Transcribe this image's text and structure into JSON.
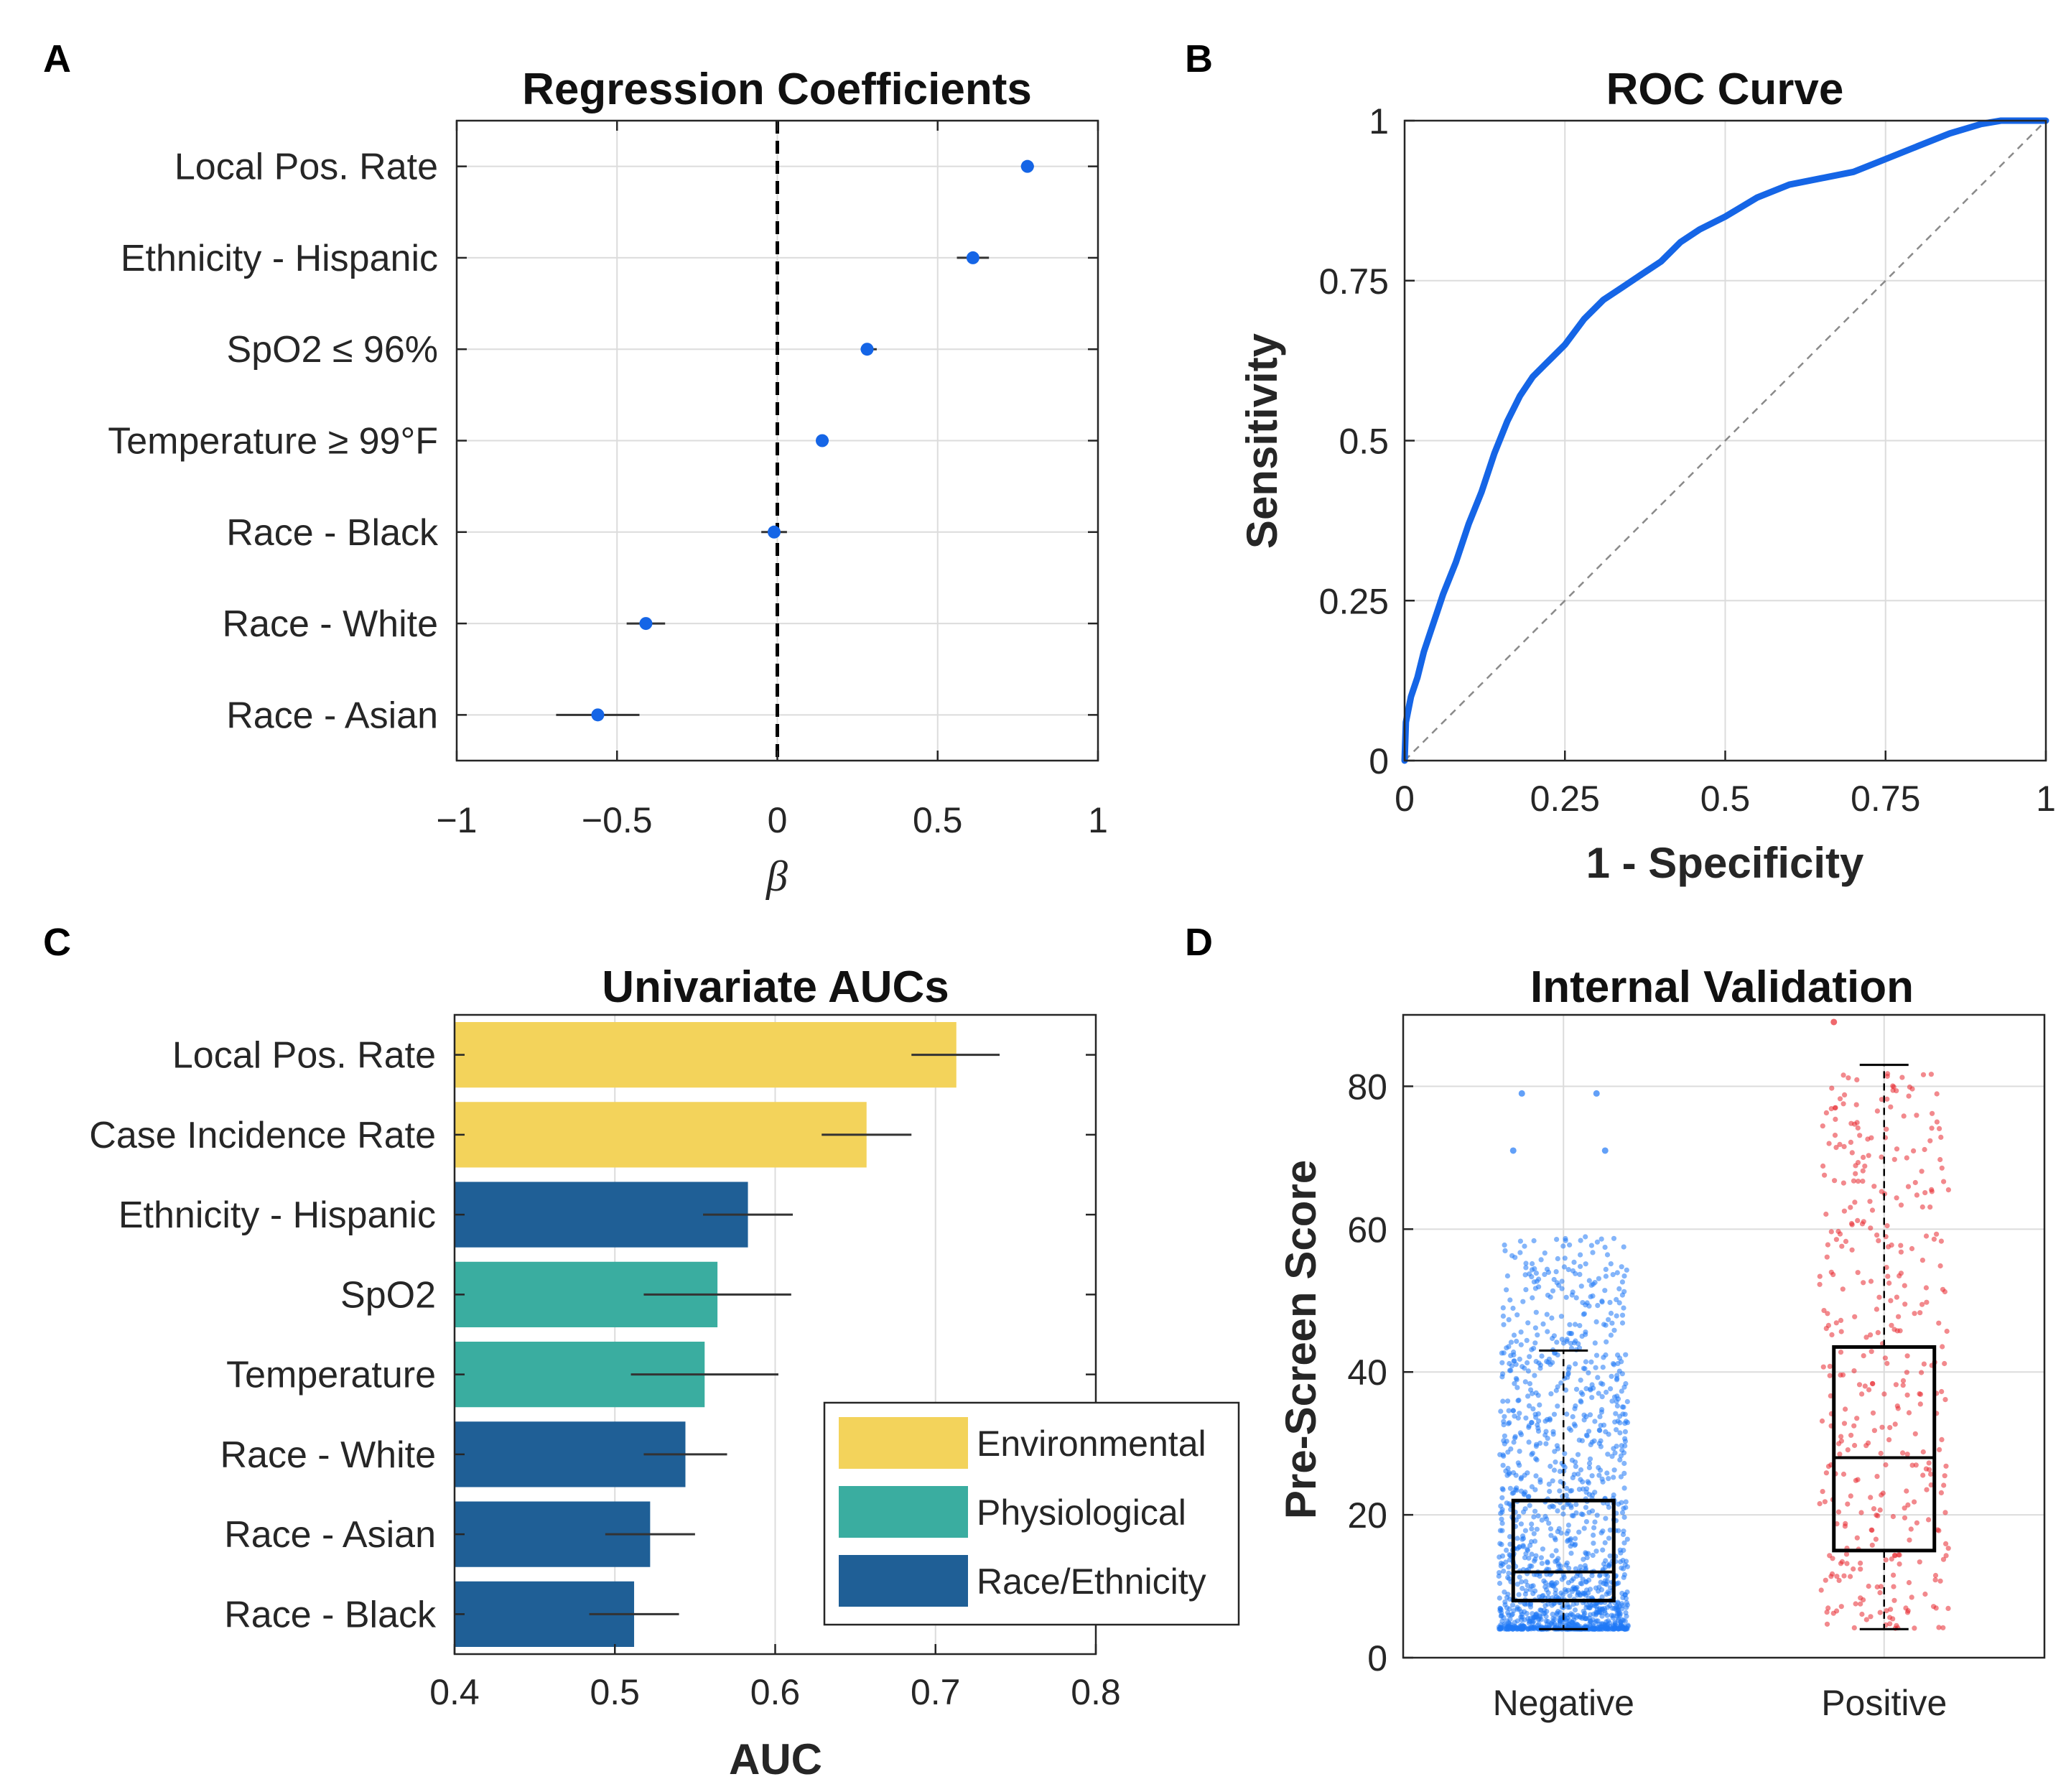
{
  "panels": {
    "A": {
      "letter": "A",
      "chart_data": {
        "type": "scatter",
        "title": "Regression Coefficients",
        "xlabel": "β",
        "xlim": [
          -1,
          1
        ],
        "xticks": [
          -1,
          -0.5,
          0,
          0.5,
          1
        ],
        "xtick_labels": [
          "−1",
          "−0.5",
          "0",
          "0.5",
          "1"
        ],
        "reference_line": 0,
        "categories": [
          "Local Pos. Rate",
          "Ethnicity - Hispanic",
          "SpO2 ≤ 96%",
          "Temperature ≥ 99°F",
          "Race - Black",
          "Race - White",
          "Race - Asian"
        ],
        "values": [
          0.78,
          0.61,
          0.28,
          0.14,
          -0.01,
          -0.41,
          -0.56
        ],
        "ci_low": [
          0.76,
          0.56,
          0.26,
          0.13,
          -0.05,
          -0.47,
          -0.69
        ],
        "ci_high": [
          0.8,
          0.66,
          0.31,
          0.16,
          0.03,
          -0.35,
          -0.43
        ],
        "color": "#1565e6"
      }
    },
    "B": {
      "letter": "B",
      "chart_data": {
        "type": "line",
        "title": "ROC Curve",
        "xlabel": "1 - Specificity",
        "ylabel": "Sensitivity",
        "xlim": [
          0,
          1
        ],
        "ylim": [
          0,
          1
        ],
        "ticks": [
          0,
          0.25,
          0.5,
          0.75,
          1
        ],
        "tick_labels": [
          "0",
          "0.25",
          "0.5",
          "0.75",
          "1"
        ],
        "x": [
          0,
          0.002,
          0.01,
          0.02,
          0.03,
          0.04,
          0.05,
          0.06,
          0.08,
          0.1,
          0.12,
          0.14,
          0.16,
          0.18,
          0.2,
          0.22,
          0.25,
          0.28,
          0.31,
          0.34,
          0.37,
          0.4,
          0.43,
          0.46,
          0.5,
          0.55,
          0.6,
          0.65,
          0.7,
          0.75,
          0.8,
          0.85,
          0.9,
          0.93,
          0.96,
          1
        ],
        "y": [
          0,
          0.06,
          0.1,
          0.13,
          0.17,
          0.2,
          0.23,
          0.26,
          0.31,
          0.37,
          0.42,
          0.48,
          0.53,
          0.57,
          0.6,
          0.62,
          0.65,
          0.69,
          0.72,
          0.74,
          0.76,
          0.78,
          0.81,
          0.83,
          0.85,
          0.88,
          0.9,
          0.91,
          0.92,
          0.94,
          0.96,
          0.98,
          0.995,
          1,
          1,
          1
        ],
        "color": "#1565e6",
        "chance_line": true
      }
    },
    "C": {
      "letter": "C",
      "chart_data": {
        "type": "bar",
        "orientation": "horizontal",
        "title": "Univariate AUCs",
        "xlabel": "AUC",
        "xlim": [
          0.4,
          0.8
        ],
        "xticks": [
          0.4,
          0.5,
          0.6,
          0.7,
          0.8
        ],
        "xtick_labels": [
          "0.4",
          "0.5",
          "0.6",
          "0.7",
          "0.8"
        ],
        "categories": [
          "Local Pos. Rate",
          "Case Incidence Rate",
          "Ethnicity - Hispanic",
          "SpO2",
          "Temperature",
          "Race - White",
          "Race - Asian",
          "Race - Black"
        ],
        "values": [
          0.713,
          0.657,
          0.583,
          0.564,
          0.556,
          0.544,
          0.522,
          0.512
        ],
        "ci_low": [
          0.685,
          0.629,
          0.555,
          0.518,
          0.51,
          0.518,
          0.494,
          0.484
        ],
        "ci_high": [
          0.74,
          0.685,
          0.611,
          0.61,
          0.602,
          0.57,
          0.55,
          0.54
        ],
        "groups": [
          "Environmental",
          "Environmental",
          "Race/Ethnicity",
          "Physiological",
          "Physiological",
          "Race/Ethnicity",
          "Race/Ethnicity",
          "Race/Ethnicity"
        ],
        "legend": [
          {
            "label": "Environmental",
            "color": "#f3d35b"
          },
          {
            "label": "Physiological",
            "color": "#3aada0"
          },
          {
            "label": "Race/Ethnicity",
            "color": "#1f5f96"
          }
        ],
        "legend_position": "bottom-right"
      }
    },
    "D": {
      "letter": "D",
      "chart_data": {
        "type": "box",
        "title": "Internal Validation",
        "ylabel": "Pre-Screen Score",
        "ylim": [
          0,
          90
        ],
        "yticks": [
          0,
          20,
          40,
          60,
          80
        ],
        "ytick_labels": [
          "0",
          "20",
          "40",
          "60",
          "80"
        ],
        "categories": [
          "Negative",
          "Positive"
        ],
        "series": [
          {
            "name": "Negative",
            "color": "#1f78f5",
            "whisker_low": 4,
            "q1": 8,
            "median": 12,
            "q3": 22,
            "whisker_high": 43,
            "outliers": [
              71,
              79,
              79,
              71
            ]
          },
          {
            "name": "Positive",
            "color": "#e8282f",
            "whisker_low": 4,
            "q1": 15,
            "median": 28,
            "q3": 43.5,
            "whisker_high": 83,
            "outliers": [
              89
            ]
          }
        ],
        "jitter_points_shown": true
      }
    }
  }
}
